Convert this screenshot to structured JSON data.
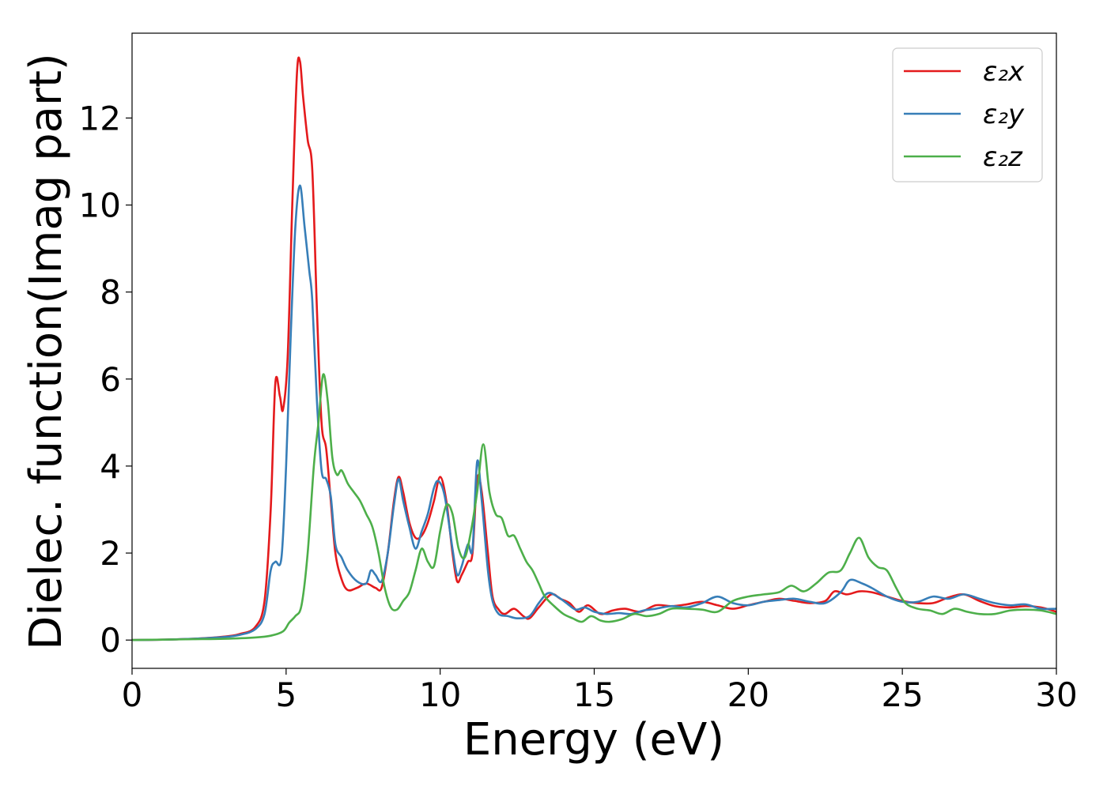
{
  "chart_data": {
    "type": "line",
    "title": "",
    "xlabel": "Energy (eV)",
    "ylabel": "Dielec. function(Imag part)",
    "xlim": [
      0,
      30
    ],
    "ylim": [
      -0.65,
      13.95
    ],
    "xticks": [
      0,
      5,
      10,
      15,
      20,
      25,
      30
    ],
    "yticks": [
      0,
      2,
      4,
      6,
      8,
      10,
      12
    ],
    "grid": false,
    "legend_position": "top-right",
    "series": [
      {
        "name": "ε₂x",
        "color": "#e41a1c",
        "points": [
          [
            0,
            0
          ],
          [
            1,
            0.01
          ],
          [
            2,
            0.03
          ],
          [
            3,
            0.08
          ],
          [
            3.5,
            0.14
          ],
          [
            4,
            0.3
          ],
          [
            4.3,
            0.9
          ],
          [
            4.5,
            3
          ],
          [
            4.65,
            5.9
          ],
          [
            4.8,
            5.6
          ],
          [
            4.9,
            5.3
          ],
          [
            5.05,
            6.5
          ],
          [
            5.2,
            10
          ],
          [
            5.35,
            13
          ],
          [
            5.45,
            13.3
          ],
          [
            5.55,
            12.5
          ],
          [
            5.7,
            11.5
          ],
          [
            5.85,
            10.8
          ],
          [
            6.0,
            7.6
          ],
          [
            6.15,
            5.0
          ],
          [
            6.3,
            4.4
          ],
          [
            6.45,
            3.2
          ],
          [
            6.6,
            2.0
          ],
          [
            6.8,
            1.4
          ],
          [
            7.0,
            1.15
          ],
          [
            7.3,
            1.2
          ],
          [
            7.6,
            1.3
          ],
          [
            7.9,
            1.2
          ],
          [
            8.1,
            1.2
          ],
          [
            8.3,
            2
          ],
          [
            8.5,
            3.2
          ],
          [
            8.65,
            3.75
          ],
          [
            8.8,
            3.4
          ],
          [
            9.0,
            2.7
          ],
          [
            9.2,
            2.35
          ],
          [
            9.4,
            2.4
          ],
          [
            9.6,
            2.7
          ],
          [
            9.8,
            3.2
          ],
          [
            10.0,
            3.75
          ],
          [
            10.2,
            3.2
          ],
          [
            10.4,
            2.0
          ],
          [
            10.55,
            1.35
          ],
          [
            10.7,
            1.5
          ],
          [
            10.9,
            1.8
          ],
          [
            11.05,
            2.0
          ],
          [
            11.2,
            3.7
          ],
          [
            11.35,
            3.4
          ],
          [
            11.55,
            2.0
          ],
          [
            11.7,
            1.0
          ],
          [
            11.9,
            0.7
          ],
          [
            12.1,
            0.6
          ],
          [
            12.4,
            0.72
          ],
          [
            12.7,
            0.55
          ],
          [
            12.9,
            0.5
          ],
          [
            13.2,
            0.75
          ],
          [
            13.6,
            1.05
          ],
          [
            13.9,
            0.95
          ],
          [
            14.2,
            0.85
          ],
          [
            14.5,
            0.65
          ],
          [
            14.8,
            0.8
          ],
          [
            15.2,
            0.6
          ],
          [
            15.6,
            0.68
          ],
          [
            16.0,
            0.72
          ],
          [
            16.5,
            0.65
          ],
          [
            17.0,
            0.8
          ],
          [
            17.5,
            0.78
          ],
          [
            18.0,
            0.82
          ],
          [
            18.5,
            0.88
          ],
          [
            19.0,
            0.8
          ],
          [
            19.5,
            0.72
          ],
          [
            20.0,
            0.8
          ],
          [
            20.5,
            0.88
          ],
          [
            21.0,
            0.95
          ],
          [
            21.5,
            0.9
          ],
          [
            22.0,
            0.85
          ],
          [
            22.5,
            0.9
          ],
          [
            22.8,
            1.12
          ],
          [
            23.2,
            1.05
          ],
          [
            23.6,
            1.12
          ],
          [
            24.0,
            1.1
          ],
          [
            24.5,
            1.0
          ],
          [
            25.0,
            0.9
          ],
          [
            25.5,
            0.85
          ],
          [
            26.0,
            0.85
          ],
          [
            26.5,
            0.98
          ],
          [
            27.0,
            1.05
          ],
          [
            27.5,
            0.9
          ],
          [
            28.0,
            0.78
          ],
          [
            28.5,
            0.75
          ],
          [
            29.0,
            0.78
          ],
          [
            29.5,
            0.75
          ],
          [
            30.0,
            0.65
          ]
        ]
      },
      {
        "name": "ε₂y",
        "color": "#377eb8",
        "points": [
          [
            0,
            0
          ],
          [
            1,
            0.01
          ],
          [
            2,
            0.03
          ],
          [
            3,
            0.07
          ],
          [
            3.5,
            0.12
          ],
          [
            4,
            0.25
          ],
          [
            4.3,
            0.6
          ],
          [
            4.5,
            1.6
          ],
          [
            4.65,
            1.8
          ],
          [
            4.85,
            1.9
          ],
          [
            5.0,
            4
          ],
          [
            5.15,
            7
          ],
          [
            5.3,
            9.5
          ],
          [
            5.45,
            10.45
          ],
          [
            5.6,
            9.5
          ],
          [
            5.75,
            8.5
          ],
          [
            5.85,
            7.8
          ],
          [
            6.0,
            5.5
          ],
          [
            6.15,
            3.9
          ],
          [
            6.3,
            3.7
          ],
          [
            6.45,
            3.3
          ],
          [
            6.6,
            2.2
          ],
          [
            6.8,
            1.9
          ],
          [
            7.0,
            1.6
          ],
          [
            7.3,
            1.35
          ],
          [
            7.6,
            1.3
          ],
          [
            7.75,
            1.6
          ],
          [
            7.9,
            1.5
          ],
          [
            8.1,
            1.35
          ],
          [
            8.3,
            2
          ],
          [
            8.5,
            3.1
          ],
          [
            8.65,
            3.7
          ],
          [
            8.8,
            3.2
          ],
          [
            9.0,
            2.6
          ],
          [
            9.2,
            2.1
          ],
          [
            9.4,
            2.5
          ],
          [
            9.6,
            2.9
          ],
          [
            9.8,
            3.5
          ],
          [
            9.95,
            3.65
          ],
          [
            10.15,
            3.3
          ],
          [
            10.4,
            2.1
          ],
          [
            10.55,
            1.5
          ],
          [
            10.7,
            1.7
          ],
          [
            10.9,
            2.2
          ],
          [
            11.05,
            2.1
          ],
          [
            11.2,
            4.1
          ],
          [
            11.35,
            3.2
          ],
          [
            11.55,
            1.6
          ],
          [
            11.7,
            0.9
          ],
          [
            11.9,
            0.6
          ],
          [
            12.2,
            0.55
          ],
          [
            12.5,
            0.5
          ],
          [
            12.9,
            0.55
          ],
          [
            13.2,
            0.85
          ],
          [
            13.5,
            1.08
          ],
          [
            13.8,
            1.0
          ],
          [
            14.1,
            0.85
          ],
          [
            14.4,
            0.7
          ],
          [
            14.7,
            0.75
          ],
          [
            15.0,
            0.65
          ],
          [
            15.4,
            0.6
          ],
          [
            15.8,
            0.62
          ],
          [
            16.2,
            0.6
          ],
          [
            16.6,
            0.68
          ],
          [
            17.0,
            0.72
          ],
          [
            17.5,
            0.78
          ],
          [
            18.0,
            0.75
          ],
          [
            18.5,
            0.85
          ],
          [
            19.0,
            1.0
          ],
          [
            19.5,
            0.85
          ],
          [
            20.0,
            0.8
          ],
          [
            20.5,
            0.88
          ],
          [
            21.0,
            0.92
          ],
          [
            21.5,
            0.95
          ],
          [
            22.0,
            0.88
          ],
          [
            22.5,
            0.85
          ],
          [
            23.0,
            1.1
          ],
          [
            23.3,
            1.38
          ],
          [
            23.7,
            1.3
          ],
          [
            24.0,
            1.2
          ],
          [
            24.5,
            1.0
          ],
          [
            25.0,
            0.88
          ],
          [
            25.5,
            0.88
          ],
          [
            26.0,
            1.0
          ],
          [
            26.5,
            0.95
          ],
          [
            27.0,
            1.05
          ],
          [
            27.5,
            0.95
          ],
          [
            28.0,
            0.85
          ],
          [
            28.5,
            0.8
          ],
          [
            29.0,
            0.82
          ],
          [
            29.5,
            0.72
          ],
          [
            30.0,
            0.72
          ]
        ]
      },
      {
        "name": "ε₂z",
        "color": "#4daf4a",
        "points": [
          [
            0,
            0
          ],
          [
            1,
            0.01
          ],
          [
            2,
            0.02
          ],
          [
            3,
            0.03
          ],
          [
            4,
            0.06
          ],
          [
            4.5,
            0.1
          ],
          [
            4.9,
            0.2
          ],
          [
            5.1,
            0.4
          ],
          [
            5.3,
            0.55
          ],
          [
            5.5,
            0.8
          ],
          [
            5.7,
            2
          ],
          [
            5.9,
            4
          ],
          [
            6.05,
            5
          ],
          [
            6.2,
            6.1
          ],
          [
            6.35,
            5.5
          ],
          [
            6.5,
            4.2
          ],
          [
            6.65,
            3.8
          ],
          [
            6.8,
            3.9
          ],
          [
            7.0,
            3.6
          ],
          [
            7.2,
            3.4
          ],
          [
            7.4,
            3.2
          ],
          [
            7.6,
            2.9
          ],
          [
            7.8,
            2.6
          ],
          [
            8.0,
            2.0
          ],
          [
            8.2,
            1.2
          ],
          [
            8.4,
            0.75
          ],
          [
            8.6,
            0.7
          ],
          [
            8.8,
            0.9
          ],
          [
            9.0,
            1.1
          ],
          [
            9.2,
            1.6
          ],
          [
            9.4,
            2.1
          ],
          [
            9.6,
            1.8
          ],
          [
            9.8,
            1.7
          ],
          [
            10.0,
            2.5
          ],
          [
            10.2,
            3.1
          ],
          [
            10.4,
            2.9
          ],
          [
            10.6,
            2.1
          ],
          [
            10.8,
            1.9
          ],
          [
            11.0,
            2.5
          ],
          [
            11.2,
            3.4
          ],
          [
            11.4,
            4.5
          ],
          [
            11.6,
            3.4
          ],
          [
            11.8,
            2.9
          ],
          [
            12.0,
            2.8
          ],
          [
            12.2,
            2.4
          ],
          [
            12.4,
            2.4
          ],
          [
            12.6,
            2.1
          ],
          [
            12.8,
            1.8
          ],
          [
            13.0,
            1.6
          ],
          [
            13.2,
            1.3
          ],
          [
            13.4,
            1.0
          ],
          [
            13.7,
            0.78
          ],
          [
            14.0,
            0.6
          ],
          [
            14.3,
            0.5
          ],
          [
            14.6,
            0.42
          ],
          [
            14.9,
            0.55
          ],
          [
            15.2,
            0.45
          ],
          [
            15.5,
            0.42
          ],
          [
            15.9,
            0.48
          ],
          [
            16.3,
            0.6
          ],
          [
            16.7,
            0.55
          ],
          [
            17.1,
            0.6
          ],
          [
            17.5,
            0.72
          ],
          [
            18.0,
            0.72
          ],
          [
            18.5,
            0.7
          ],
          [
            19.0,
            0.65
          ],
          [
            19.5,
            0.9
          ],
          [
            20.0,
            1.0
          ],
          [
            20.5,
            1.05
          ],
          [
            21.0,
            1.1
          ],
          [
            21.4,
            1.25
          ],
          [
            21.8,
            1.12
          ],
          [
            22.2,
            1.3
          ],
          [
            22.6,
            1.55
          ],
          [
            23.0,
            1.6
          ],
          [
            23.3,
            2.0
          ],
          [
            23.6,
            2.35
          ],
          [
            23.9,
            1.9
          ],
          [
            24.2,
            1.68
          ],
          [
            24.5,
            1.6
          ],
          [
            24.8,
            1.2
          ],
          [
            25.1,
            0.85
          ],
          [
            25.5,
            0.72
          ],
          [
            25.9,
            0.68
          ],
          [
            26.3,
            0.6
          ],
          [
            26.7,
            0.72
          ],
          [
            27.1,
            0.65
          ],
          [
            27.5,
            0.6
          ],
          [
            28.0,
            0.6
          ],
          [
            28.5,
            0.68
          ],
          [
            29.0,
            0.7
          ],
          [
            29.5,
            0.68
          ],
          [
            30.0,
            0.6
          ]
        ]
      }
    ]
  }
}
